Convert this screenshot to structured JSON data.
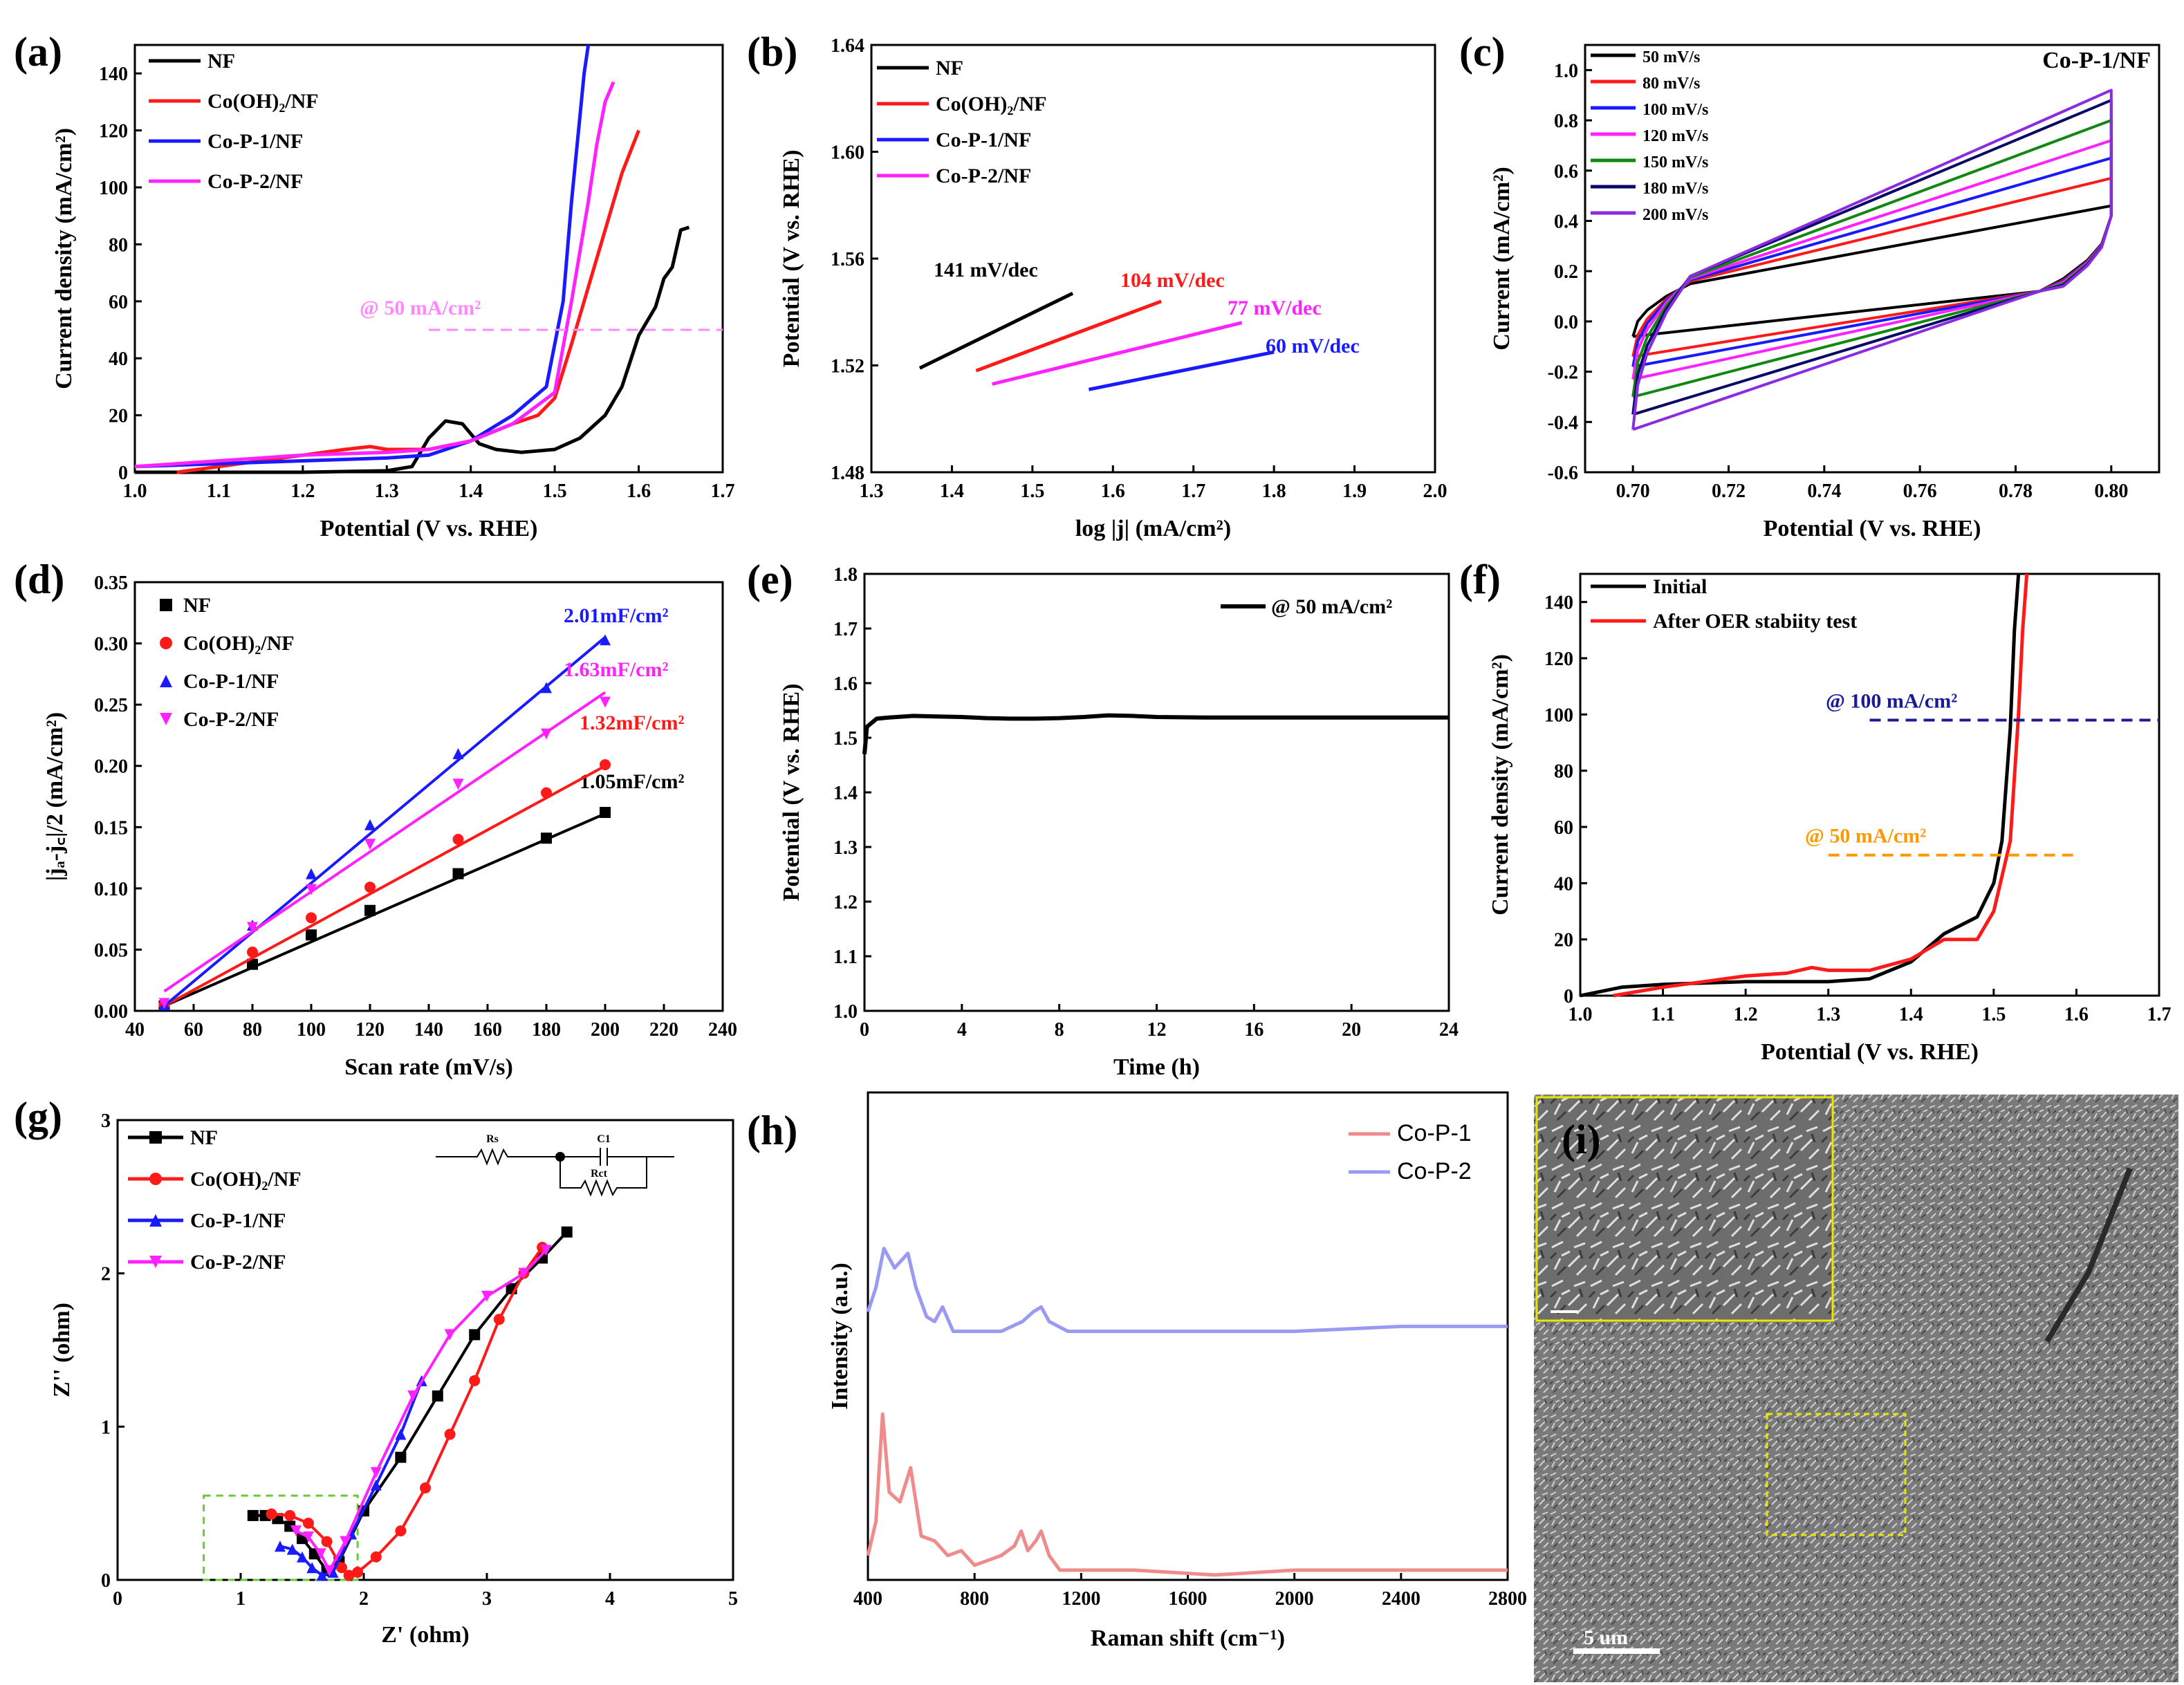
{
  "figure": "OER electrochemical characterisation figure",
  "colors": {
    "NF": "#000000",
    "CoOH2": "#ff1a1a",
    "CoP1": "#1a1aff",
    "CoP2": "#ff22ff",
    "ref50": "#ff88ff",
    "ref100": "#1a1a99",
    "orange": "#ff9900",
    "green": "#118811",
    "navy": "#0a0a66",
    "purple": "#8a2be2",
    "ramanP1": "#f08b8b",
    "ramanP2": "#9a9af5"
  },
  "chart_data": [
    {
      "id": "a",
      "type": "line",
      "panel_label": "(a)",
      "xlabel": "Potential (V vs. RHE)",
      "ylabel": "Current density (mA/cm²)",
      "xlim": [
        1.0,
        1.7
      ],
      "ylim": [
        0,
        150
      ],
      "xticks": [
        1.0,
        1.1,
        1.2,
        1.3,
        1.4,
        1.5,
        1.6,
        1.7
      ],
      "yticks": [
        0,
        20,
        40,
        60,
        80,
        100,
        120,
        140
      ],
      "annotation": "@ 50 mA/cm²",
      "ref_line": {
        "y": 50,
        "x": [
          1.35,
          1.7
        ]
      },
      "series": [
        {
          "name": "NF",
          "color_key": "NF",
          "x": [
            1.0,
            1.1,
            1.2,
            1.3,
            1.33,
            1.35,
            1.37,
            1.39,
            1.41,
            1.43,
            1.46,
            1.5,
            1.53,
            1.56,
            1.58,
            1.6,
            1.62,
            1.63,
            1.64,
            1.65,
            1.66
          ],
          "y": [
            0,
            0,
            0,
            0.5,
            2,
            12,
            18,
            17,
            10,
            8,
            7,
            8,
            12,
            20,
            30,
            48,
            58,
            68,
            72,
            85,
            86
          ]
        },
        {
          "name": "Co(OH)₂/NF",
          "color_key": "CoOH2",
          "x": [
            1.05,
            1.1,
            1.15,
            1.2,
            1.25,
            1.28,
            1.3,
            1.35,
            1.4,
            1.45,
            1.48,
            1.5,
            1.52,
            1.54,
            1.56,
            1.58,
            1.6
          ],
          "y": [
            0,
            2,
            4,
            6,
            8,
            9,
            8,
            8,
            11,
            17,
            20,
            26,
            45,
            65,
            85,
            105,
            120
          ]
        },
        {
          "name": "Co-P-1/NF",
          "color_key": "CoP1",
          "x": [
            1.0,
            1.1,
            1.2,
            1.3,
            1.35,
            1.4,
            1.45,
            1.49,
            1.51,
            1.52,
            1.53,
            1.535,
            1.54
          ],
          "y": [
            2,
            3,
            4,
            5,
            6,
            11,
            20,
            30,
            60,
            95,
            125,
            140,
            150
          ]
        },
        {
          "name": "Co-P-2/NF",
          "color_key": "CoP2",
          "x": [
            1.0,
            1.1,
            1.2,
            1.3,
            1.35,
            1.4,
            1.45,
            1.5,
            1.52,
            1.54,
            1.55,
            1.56,
            1.57
          ],
          "y": [
            2,
            4,
            6,
            7,
            8,
            11,
            17,
            28,
            60,
            95,
            115,
            130,
            137
          ]
        }
      ]
    },
    {
      "id": "b",
      "type": "line",
      "panel_label": "(b)",
      "xlabel": "log |j| (mA/cm²)",
      "ylabel": "Potential (V vs. RHE)",
      "xlim": [
        1.3,
        2.0
      ],
      "ylim": [
        1.48,
        1.64
      ],
      "xticks": [
        1.3,
        1.4,
        1.5,
        1.6,
        1.7,
        1.8,
        1.9,
        2.0
      ],
      "yticks": [
        1.48,
        1.52,
        1.56,
        1.6,
        1.64
      ],
      "series": [
        {
          "name": "NF",
          "color_key": "NF",
          "slope_label": "141 mV/dec",
          "x": [
            1.36,
            1.55
          ],
          "y": [
            1.519,
            1.547
          ]
        },
        {
          "name": "Co(OH)₂/NF",
          "color_key": "CoOH2",
          "slope_label": "104 mV/dec",
          "x": [
            1.43,
            1.66
          ],
          "y": [
            1.518,
            1.544
          ]
        },
        {
          "name": "Co-P-1/NF",
          "color_key": "CoP1",
          "slope_label": "60 mV/dec",
          "x": [
            1.57,
            1.8
          ],
          "y": [
            1.511,
            1.525
          ]
        },
        {
          "name": "Co-P-2/NF",
          "color_key": "CoP2",
          "slope_label": "77 mV/dec",
          "x": [
            1.45,
            1.76
          ],
          "y": [
            1.513,
            1.536
          ]
        }
      ]
    },
    {
      "id": "c",
      "type": "line",
      "panel_label": "(c)",
      "xlabel": "Potential (V vs. RHE)",
      "ylabel": "Current (mA/cm²)",
      "title": "Co-P-1/NF",
      "xlim": [
        0.69,
        0.81
      ],
      "ylim": [
        -0.6,
        1.1
      ],
      "xticks": [
        0.7,
        0.72,
        0.74,
        0.76,
        0.78,
        0.8
      ],
      "yticks": [
        -0.6,
        -0.4,
        -0.2,
        0.0,
        0.2,
        0.4,
        0.6,
        0.8,
        1.0
      ],
      "series": [
        {
          "name": "50 mV/s",
          "color_key": "NF",
          "anodic_start": 0.15,
          "anodic_end": 0.46,
          "cathodic": -0.06
        },
        {
          "name": "80 mV/s",
          "color_key": "CoOH2",
          "anodic_start": 0.16,
          "anodic_end": 0.57,
          "cathodic": -0.14
        },
        {
          "name": "100 mV/s",
          "color_key": "CoP1",
          "anodic_start": 0.165,
          "anodic_end": 0.65,
          "cathodic": -0.18
        },
        {
          "name": "120 mV/s",
          "color_key": "CoP2",
          "anodic_start": 0.17,
          "anodic_end": 0.72,
          "cathodic": -0.23
        },
        {
          "name": "150 mV/s",
          "color_key": "green",
          "anodic_start": 0.175,
          "anodic_end": 0.8,
          "cathodic": -0.3
        },
        {
          "name": "180 mV/s",
          "color_key": "navy",
          "anodic_start": 0.18,
          "anodic_end": 0.88,
          "cathodic": -0.37
        },
        {
          "name": "200 mV/s",
          "color_key": "purple",
          "anodic_start": 0.18,
          "anodic_end": 0.92,
          "cathodic": -0.43
        }
      ]
    },
    {
      "id": "d",
      "type": "scatter",
      "panel_label": "(d)",
      "xlabel": "Scan rate (mV/s)",
      "ylabel": "|jₐ-j꜀|/2 (mA/cm²)",
      "xlim": [
        40,
        240
      ],
      "ylim": [
        0,
        0.35
      ],
      "xticks": [
        40,
        60,
        80,
        100,
        120,
        140,
        160,
        180,
        200,
        220,
        240
      ],
      "yticks": [
        0.0,
        0.05,
        0.1,
        0.15,
        0.2,
        0.25,
        0.3,
        0.35
      ],
      "x": [
        50,
        80,
        100,
        120,
        150,
        180,
        200
      ],
      "series": [
        {
          "name": "NF",
          "color_key": "NF",
          "marker": "square",
          "values": [
            0.004,
            0.038,
            0.062,
            0.082,
            0.112,
            0.141,
            0.162
          ],
          "fit_label": "1.05mF/cm²",
          "fit": [
            0.004,
            0.161
          ]
        },
        {
          "name": "Co(OH)₂/NF",
          "color_key": "CoOH2",
          "marker": "circle",
          "values": [
            0.005,
            0.048,
            0.076,
            0.101,
            0.14,
            0.178,
            0.201
          ],
          "fit_label": "1.32mF/cm²",
          "fit": [
            0.004,
            0.2
          ]
        },
        {
          "name": "Co-P-1/NF",
          "color_key": "CoP1",
          "marker": "triangle-up",
          "values": [
            0.005,
            0.07,
            0.112,
            0.152,
            0.21,
            0.264,
            0.303
          ],
          "fit_label": "2.01mF/cm²",
          "fit": [
            0.004,
            0.305
          ]
        },
        {
          "name": "Co-P-2/NF",
          "color_key": "CoP2",
          "marker": "triangle-down",
          "values": [
            0.006,
            0.068,
            0.099,
            0.136,
            0.185,
            0.226,
            0.252
          ],
          "fit_label": "1.63mF/cm²",
          "fit": [
            0.016,
            0.26
          ]
        }
      ]
    },
    {
      "id": "e",
      "type": "line",
      "panel_label": "(e)",
      "xlabel": "Time (h)",
      "ylabel": "Potential (V vs. RHE)",
      "xlim": [
        0,
        24
      ],
      "ylim": [
        1.0,
        1.8
      ],
      "xticks": [
        0,
        4,
        8,
        12,
        16,
        20,
        24
      ],
      "yticks": [
        1.0,
        1.1,
        1.2,
        1.3,
        1.4,
        1.5,
        1.6,
        1.7,
        1.8
      ],
      "series": [
        {
          "name": "@ 50 mA/cm²",
          "color_key": "NF",
          "x": [
            0,
            0.1,
            0.5,
            1,
            2,
            3,
            4,
            5,
            6,
            7,
            8,
            9,
            10,
            11,
            12,
            14,
            16,
            18,
            20,
            22,
            24
          ],
          "y": [
            1.47,
            1.52,
            1.535,
            1.537,
            1.54,
            1.539,
            1.538,
            1.536,
            1.535,
            1.535,
            1.536,
            1.538,
            1.541,
            1.54,
            1.538,
            1.537,
            1.537,
            1.537,
            1.537,
            1.537,
            1.537
          ]
        }
      ]
    },
    {
      "id": "f",
      "type": "line",
      "panel_label": "(f)",
      "xlabel": "Potential (V vs. RHE)",
      "ylabel": "Current density (mA/cm²)",
      "xlim": [
        1.0,
        1.7
      ],
      "ylim": [
        0,
        150
      ],
      "xticks": [
        1.0,
        1.1,
        1.2,
        1.3,
        1.4,
        1.5,
        1.6,
        1.7
      ],
      "yticks": [
        0,
        20,
        40,
        60,
        80,
        100,
        120,
        140
      ],
      "annotations": [
        {
          "text": "@ 100 mA/cm²",
          "y": 98,
          "x": [
            1.35,
            1.7
          ],
          "color_key": "ref100"
        },
        {
          "text": "@ 50 mA/cm²",
          "y": 50,
          "x": [
            1.3,
            1.6
          ],
          "color_key": "orange"
        }
      ],
      "series": [
        {
          "name": "Initial",
          "color_key": "NF",
          "x": [
            1.0,
            1.05,
            1.1,
            1.2,
            1.3,
            1.35,
            1.4,
            1.44,
            1.48,
            1.5,
            1.51,
            1.52,
            1.525,
            1.53
          ],
          "y": [
            0,
            3,
            4,
            5,
            5,
            6,
            12,
            22,
            28,
            40,
            55,
            95,
            130,
            150
          ]
        },
        {
          "name": "After OER stabiity test",
          "color_key": "CoOH2",
          "x": [
            1.04,
            1.1,
            1.15,
            1.2,
            1.25,
            1.28,
            1.3,
            1.35,
            1.4,
            1.44,
            1.48,
            1.5,
            1.52,
            1.53,
            1.535,
            1.54
          ],
          "y": [
            0,
            3,
            5,
            7,
            8,
            10,
            9,
            9,
            13,
            20,
            20,
            30,
            55,
            100,
            130,
            150
          ]
        }
      ]
    },
    {
      "id": "g",
      "type": "line",
      "panel_label": "(g)",
      "xlabel": "Z' (ohm)",
      "ylabel": "Z'' (ohm)",
      "xlim": [
        0,
        5
      ],
      "ylim": [
        0,
        3
      ],
      "xticks": [
        0,
        1,
        2,
        3,
        4,
        5
      ],
      "yticks": [
        0,
        1,
        2,
        3
      ],
      "circuit": {
        "r1": "Rs",
        "c1": "C1",
        "r2": "Rct"
      },
      "series": [
        {
          "name": "NF",
          "color_key": "NF",
          "marker": "square",
          "x": [
            1.1,
            1.2,
            1.3,
            1.4,
            1.5,
            1.6,
            1.7,
            1.8,
            2.0,
            2.3,
            2.6,
            2.9,
            3.2,
            3.45,
            3.65
          ],
          "y": [
            0.42,
            0.42,
            0.4,
            0.35,
            0.27,
            0.17,
            0.06,
            0.12,
            0.45,
            0.8,
            1.2,
            1.6,
            1.9,
            2.1,
            2.27
          ]
        },
        {
          "name": "Co(OH)₂/NF",
          "color_key": "CoOH2",
          "marker": "circle",
          "x": [
            1.25,
            1.4,
            1.55,
            1.7,
            1.82,
            1.88,
            1.95,
            2.1,
            2.3,
            2.5,
            2.7,
            2.9,
            3.1,
            3.3,
            3.45
          ],
          "y": [
            0.43,
            0.42,
            0.37,
            0.25,
            0.08,
            0.03,
            0.05,
            0.15,
            0.32,
            0.6,
            0.95,
            1.3,
            1.7,
            2.0,
            2.17
          ]
        },
        {
          "name": "Co-P-1/NF",
          "color_key": "CoP1",
          "marker": "triangle-up",
          "x": [
            1.32,
            1.42,
            1.5,
            1.58,
            1.66,
            1.75,
            1.9,
            2.1,
            2.3,
            2.47
          ],
          "y": [
            0.22,
            0.2,
            0.15,
            0.08,
            0.03,
            0.05,
            0.3,
            0.62,
            0.95,
            1.3
          ]
        },
        {
          "name": "Co-P-2/NF",
          "color_key": "CoP2",
          "marker": "triangle-down",
          "x": [
            1.45,
            1.55,
            1.65,
            1.72,
            1.85,
            2.1,
            2.4,
            2.7,
            3.0,
            3.3,
            3.48
          ],
          "y": [
            0.32,
            0.28,
            0.17,
            0.06,
            0.25,
            0.7,
            1.2,
            1.6,
            1.85,
            2.0,
            2.15
          ]
        }
      ]
    },
    {
      "id": "h",
      "type": "line",
      "panel_label": "(h)",
      "xlabel": "Raman shift (cm⁻¹)",
      "ylabel": "Intensity (a.u.)",
      "xlim": [
        400,
        2800
      ],
      "ylim": [
        0,
        1
      ],
      "xticks": [
        400,
        800,
        1200,
        1600,
        2000,
        2400,
        2800
      ],
      "series": [
        {
          "name": "Co-P-1",
          "color_key": "ramanP1",
          "x": [
            400,
            430,
            455,
            480,
            520,
            560,
            600,
            650,
            700,
            750,
            800,
            850,
            900,
            950,
            975,
            1000,
            1030,
            1050,
            1080,
            1120,
            1200,
            1400,
            1700,
            2000,
            2400,
            2800
          ],
          "y": [
            0.05,
            0.12,
            0.34,
            0.18,
            0.16,
            0.23,
            0.09,
            0.08,
            0.05,
            0.06,
            0.03,
            0.04,
            0.05,
            0.07,
            0.1,
            0.06,
            0.08,
            0.1,
            0.05,
            0.02,
            0.02,
            0.02,
            0.01,
            0.02,
            0.02,
            0.02
          ]
        },
        {
          "name": "Co-P-2",
          "color_key": "ramanP2",
          "x": [
            400,
            430,
            460,
            500,
            550,
            580,
            620,
            650,
            680,
            720,
            800,
            900,
            980,
            1020,
            1050,
            1080,
            1150,
            1200,
            1600,
            2000,
            2400,
            2800
          ],
          "y": [
            0.55,
            0.6,
            0.68,
            0.64,
            0.67,
            0.6,
            0.54,
            0.53,
            0.56,
            0.51,
            0.51,
            0.51,
            0.53,
            0.55,
            0.56,
            0.53,
            0.51,
            0.51,
            0.51,
            0.51,
            0.52,
            0.52
          ]
        }
      ]
    }
  ],
  "panel_i": {
    "label": "(i)",
    "scalebar": "5 um"
  }
}
